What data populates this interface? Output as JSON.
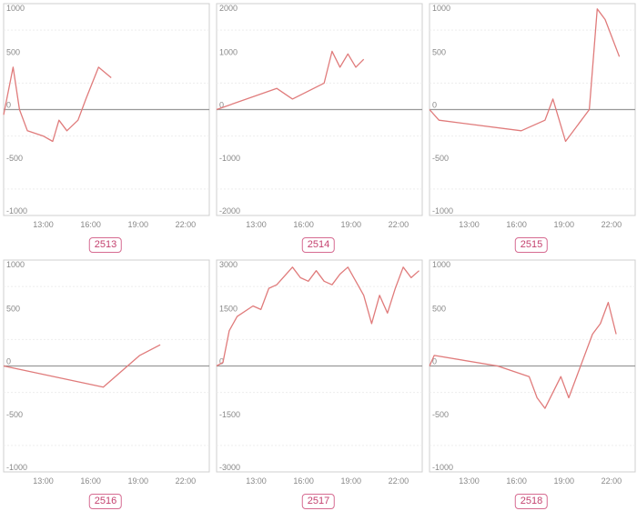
{
  "colors": {
    "line": "#e07b7b",
    "zero": "#999999",
    "frame": "#cfcfcf",
    "grid": "#ededed",
    "badge": "#d66b91"
  },
  "chart_data": [
    {
      "type": "line",
      "title": "2513",
      "ylim": [
        -1000,
        1000
      ],
      "yticks": [
        1000,
        500,
        0,
        -500,
        -1000
      ],
      "xlim": [
        10.5,
        23.5
      ],
      "xticks": [
        {
          "v": 13,
          "label": "13:00"
        },
        {
          "v": 16,
          "label": "16:00"
        },
        {
          "v": 19,
          "label": "19:00"
        },
        {
          "v": 22,
          "label": "22:00"
        }
      ],
      "x": [
        10.5,
        11.1,
        11.5,
        12.0,
        13.0,
        13.6,
        14.0,
        14.5,
        15.2,
        15.7,
        16.5,
        17.3
      ],
      "y": [
        -50,
        400,
        0,
        -200,
        -250,
        -300,
        -100,
        -200,
        -100,
        100,
        400,
        300
      ]
    },
    {
      "type": "line",
      "title": "2514",
      "ylim": [
        -2000,
        2000
      ],
      "yticks": [
        2000,
        1000,
        0,
        -1000,
        -2000
      ],
      "xlim": [
        10.5,
        23.5
      ],
      "xticks": [
        {
          "v": 13,
          "label": "13:00"
        },
        {
          "v": 16,
          "label": "16:00"
        },
        {
          "v": 19,
          "label": "19:00"
        },
        {
          "v": 22,
          "label": "22:00"
        }
      ],
      "x": [
        10.5,
        14.3,
        15.3,
        17.3,
        17.8,
        18.3,
        18.8,
        19.3,
        19.8
      ],
      "y": [
        0,
        400,
        200,
        500,
        1100,
        800,
        1050,
        800,
        950
      ]
    },
    {
      "type": "line",
      "title": "2515",
      "ylim": [
        -1000,
        1000
      ],
      "yticks": [
        1000,
        500,
        0,
        -500,
        -1000
      ],
      "xlim": [
        10.5,
        23.5
      ],
      "xticks": [
        {
          "v": 13,
          "label": "13:00"
        },
        {
          "v": 16,
          "label": "16:00"
        },
        {
          "v": 19,
          "label": "19:00"
        },
        {
          "v": 22,
          "label": "22:00"
        }
      ],
      "x": [
        10.5,
        11.1,
        16.3,
        17.8,
        18.3,
        19.1,
        20.6,
        21.1,
        21.6,
        22.5
      ],
      "y": [
        0,
        -100,
        -200,
        -100,
        100,
        -300,
        0,
        950,
        850,
        500
      ]
    },
    {
      "type": "line",
      "title": "2516",
      "ylim": [
        -1000,
        1000
      ],
      "yticks": [
        1000,
        500,
        0,
        -500,
        -1000
      ],
      "xlim": [
        10.5,
        23.5
      ],
      "xticks": [
        {
          "v": 13,
          "label": "13:00"
        },
        {
          "v": 16,
          "label": "16:00"
        },
        {
          "v": 19,
          "label": "19:00"
        },
        {
          "v": 22,
          "label": "22:00"
        }
      ],
      "x": [
        10.5,
        16.8,
        19.1,
        20.4
      ],
      "y": [
        0,
        -200,
        100,
        200
      ]
    },
    {
      "type": "line",
      "title": "2517",
      "ylim": [
        -3000,
        3000
      ],
      "yticks": [
        3000,
        1500,
        0,
        -1500,
        -3000
      ],
      "xlim": [
        10.5,
        23.5
      ],
      "xticks": [
        {
          "v": 13,
          "label": "13:00"
        },
        {
          "v": 16,
          "label": "16:00"
        },
        {
          "v": 19,
          "label": "19:00"
        },
        {
          "v": 22,
          "label": "22:00"
        }
      ],
      "x": [
        10.5,
        10.9,
        11.3,
        11.8,
        12.8,
        13.3,
        13.8,
        14.3,
        15.3,
        15.8,
        16.3,
        16.8,
        17.3,
        17.8,
        18.3,
        18.8,
        19.8,
        20.3,
        20.8,
        21.3,
        21.8,
        22.3,
        22.8,
        23.3
      ],
      "y": [
        0,
        100,
        1000,
        1400,
        1700,
        1600,
        2200,
        2300,
        2800,
        2500,
        2400,
        2700,
        2400,
        2300,
        2600,
        2800,
        2000,
        1200,
        2000,
        1500,
        2200,
        2800,
        2500,
        2700
      ]
    },
    {
      "type": "line",
      "title": "2518",
      "ylim": [
        -1000,
        1000
      ],
      "yticks": [
        1000,
        500,
        0,
        -500,
        -1000
      ],
      "xlim": [
        10.5,
        23.5
      ],
      "xticks": [
        {
          "v": 13,
          "label": "13:00"
        },
        {
          "v": 16,
          "label": "16:00"
        },
        {
          "v": 19,
          "label": "19:00"
        },
        {
          "v": 22,
          "label": "22:00"
        }
      ],
      "x": [
        10.5,
        10.8,
        14.8,
        16.8,
        17.3,
        17.8,
        18.8,
        19.3,
        20.8,
        21.3,
        21.8,
        22.3
      ],
      "y": [
        0,
        100,
        0,
        -100,
        -300,
        -400,
        -100,
        -300,
        300,
        400,
        600,
        300
      ]
    }
  ]
}
